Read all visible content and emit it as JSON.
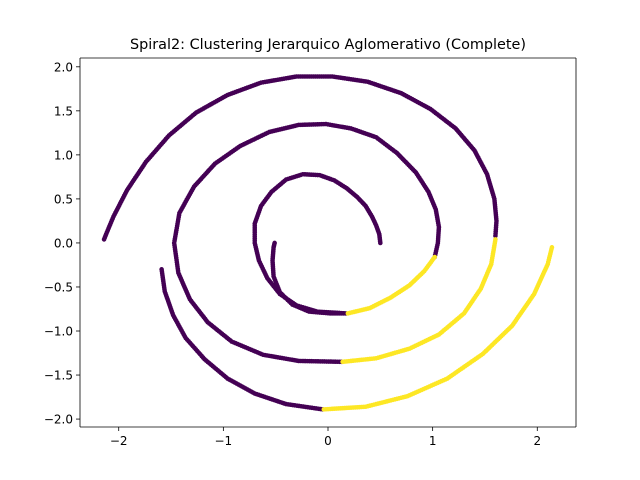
{
  "chart_data": {
    "type": "scatter",
    "title": "Spiral2: Clustering Jerarquico Aglomerativo (Complete)",
    "xlabel": "",
    "ylabel": "",
    "xlim": [
      -2.37,
      2.37
    ],
    "ylim": [
      -2.09,
      2.1
    ],
    "xticks": [
      {
        "value": -2,
        "label": "−2"
      },
      {
        "value": -1,
        "label": "−1"
      },
      {
        "value": 0,
        "label": "0"
      },
      {
        "value": 1,
        "label": "1"
      },
      {
        "value": 2,
        "label": "2"
      }
    ],
    "yticks": [
      {
        "value": 2.0,
        "label": "2.0"
      },
      {
        "value": 1.5,
        "label": "1.5"
      },
      {
        "value": 1.0,
        "label": "1.0"
      },
      {
        "value": 0.5,
        "label": "0.5"
      },
      {
        "value": 0.0,
        "label": "0.0"
      },
      {
        "value": -0.5,
        "label": "−0.5"
      },
      {
        "value": -1.0,
        "label": "−1.0"
      },
      {
        "value": -1.5,
        "label": "−1.5"
      },
      {
        "value": -2.0,
        "label": "−2.0"
      }
    ],
    "grid": false,
    "legend": "none",
    "colors": {
      "cluster_0": "#440154",
      "cluster_1": "#fde725"
    },
    "series": [
      {
        "cluster": 0,
        "color": "#440154",
        "segments": [
          [
            [
              0.5,
              0.0
            ],
            [
              0.49,
              0.1
            ],
            [
              0.46,
              0.2
            ],
            [
              0.42,
              0.3
            ],
            [
              0.36,
              0.42
            ],
            [
              0.28,
              0.52
            ],
            [
              0.18,
              0.62
            ],
            [
              0.06,
              0.71
            ],
            [
              -0.08,
              0.77
            ],
            [
              -0.24,
              0.78
            ],
            [
              -0.4,
              0.72
            ],
            [
              -0.54,
              0.58
            ],
            [
              -0.64,
              0.42
            ],
            [
              -0.7,
              0.22
            ],
            [
              -0.7,
              0.0
            ],
            [
              -0.66,
              -0.2
            ],
            [
              -0.58,
              -0.4
            ],
            [
              -0.46,
              -0.58
            ],
            [
              -0.3,
              -0.71
            ],
            [
              -0.1,
              -0.78
            ],
            [
              0.17,
              -0.8
            ],
            [
              0.02,
              -0.8
            ],
            [
              -0.18,
              -0.78
            ],
            [
              -0.34,
              -0.7
            ],
            [
              -0.46,
              -0.56
            ],
            [
              -0.52,
              -0.38
            ],
            [
              -0.53,
              -0.2
            ],
            [
              -0.52,
              -0.05
            ],
            [
              -0.51,
              0.0
            ]
          ],
          [
            [
              1.02,
              -0.16
            ],
            [
              1.05,
              0.0
            ],
            [
              1.06,
              0.18
            ],
            [
              1.03,
              0.38
            ],
            [
              0.96,
              0.58
            ],
            [
              0.84,
              0.8
            ],
            [
              0.66,
              1.02
            ],
            [
              0.46,
              1.2
            ],
            [
              0.22,
              1.3
            ],
            [
              -0.02,
              1.35
            ],
            [
              -0.28,
              1.34
            ],
            [
              -0.56,
              1.26
            ],
            [
              -0.84,
              1.1
            ],
            [
              -1.08,
              0.9
            ],
            [
              -1.28,
              0.64
            ],
            [
              -1.42,
              0.34
            ],
            [
              -1.47,
              0.0
            ],
            [
              -1.43,
              -0.34
            ],
            [
              -1.32,
              -0.64
            ],
            [
              -1.15,
              -0.9
            ],
            [
              -0.92,
              -1.12
            ],
            [
              -0.62,
              -1.27
            ],
            [
              -0.28,
              -1.34
            ],
            [
              0.13,
              -1.35
            ]
          ],
          [
            [
              1.6,
              0.08
            ],
            [
              1.61,
              0.25
            ],
            [
              1.59,
              0.5
            ],
            [
              1.52,
              0.78
            ],
            [
              1.4,
              1.05
            ],
            [
              1.22,
              1.3
            ],
            [
              0.98,
              1.52
            ],
            [
              0.7,
              1.7
            ],
            [
              0.38,
              1.83
            ],
            [
              0.04,
              1.89
            ],
            [
              -0.3,
              1.89
            ],
            [
              -0.64,
              1.82
            ],
            [
              -0.96,
              1.68
            ],
            [
              -1.26,
              1.48
            ],
            [
              -1.52,
              1.22
            ],
            [
              -1.74,
              0.92
            ],
            [
              -1.92,
              0.6
            ],
            [
              -2.05,
              0.3
            ],
            [
              -2.12,
              0.1
            ],
            [
              -2.14,
              0.04
            ]
          ],
          [
            [
              -1.59,
              -0.3
            ],
            [
              -1.56,
              -0.55
            ],
            [
              -1.48,
              -0.82
            ],
            [
              -1.36,
              -1.08
            ],
            [
              -1.18,
              -1.32
            ],
            [
              -0.96,
              -1.54
            ],
            [
              -0.7,
              -1.71
            ],
            [
              -0.4,
              -1.83
            ],
            [
              -0.05,
              -1.89
            ]
          ]
        ]
      },
      {
        "cluster": 1,
        "color": "#fde725",
        "segments": [
          [
            [
              0.19,
              -0.8
            ],
            [
              0.4,
              -0.74
            ],
            [
              0.6,
              -0.62
            ],
            [
              0.78,
              -0.48
            ],
            [
              0.92,
              -0.32
            ],
            [
              1.02,
              -0.16
            ]
          ],
          [
            [
              0.14,
              -1.35
            ],
            [
              0.46,
              -1.31
            ],
            [
              0.78,
              -1.2
            ],
            [
              1.06,
              -1.04
            ],
            [
              1.3,
              -0.8
            ],
            [
              1.46,
              -0.52
            ],
            [
              1.56,
              -0.24
            ],
            [
              1.6,
              0.04
            ]
          ],
          [
            [
              -0.04,
              -1.89
            ],
            [
              0.36,
              -1.86
            ],
            [
              0.76,
              -1.74
            ],
            [
              1.14,
              -1.54
            ],
            [
              1.48,
              -1.26
            ],
            [
              1.76,
              -0.94
            ],
            [
              1.97,
              -0.58
            ],
            [
              2.1,
              -0.24
            ],
            [
              2.14,
              -0.05
            ]
          ]
        ]
      }
    ]
  }
}
